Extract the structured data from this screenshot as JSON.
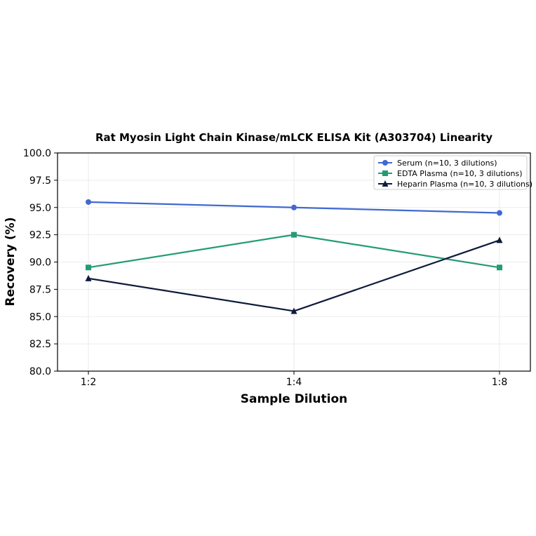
{
  "chart_data": {
    "type": "line",
    "title": "Rat Myosin Light Chain Kinase/mLCK ELISA Kit (A303704) Linearity",
    "xlabel": "Sample Dilution",
    "ylabel": "Recovery (%)",
    "categories": [
      "1:2",
      "1:4",
      "1:8"
    ],
    "ylim": [
      80.0,
      100.0
    ],
    "yticks": [
      "80.0",
      "82.5",
      "85.0",
      "87.5",
      "90.0",
      "92.5",
      "95.0",
      "97.5",
      "100.0"
    ],
    "grid": true,
    "legend_position": "top-right",
    "series": [
      {
        "name": "Serum (n=10, 3 dilutions)",
        "values": [
          95.5,
          95.0,
          94.5
        ],
        "color": "#4169cf",
        "marker": "circle"
      },
      {
        "name": "EDTA Plasma (n=10, 3 dilutions)",
        "values": [
          89.5,
          92.5,
          89.5
        ],
        "color": "#249b77",
        "marker": "square"
      },
      {
        "name": "Heparin Plasma (n=10, 3 dilutions)",
        "values": [
          88.5,
          85.5,
          92.0
        ],
        "color": "#0e1a3c",
        "marker": "triangle"
      }
    ]
  }
}
